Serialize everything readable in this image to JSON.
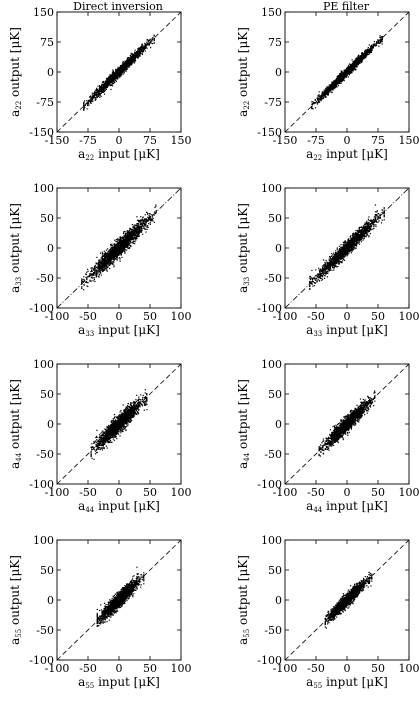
{
  "figure": {
    "columns": [
      "Direct inversion",
      "PE filter"
    ]
  },
  "chart_data": [
    {
      "type": "scatter",
      "column": "Direct inversion",
      "row": "a22",
      "xlabel": "a",
      "xlabel_sub": "22",
      "xlabel_unit": "input  [μK]",
      "ylabel": "a",
      "ylabel_sub": "22",
      "ylabel_unit": "output  [μK]",
      "xlim": [
        -150,
        150
      ],
      "ylim": [
        -150,
        150
      ],
      "xticks": [
        -150,
        -75,
        0,
        75,
        150
      ],
      "yticks": [
        -150,
        -75,
        0,
        75,
        150
      ],
      "diagonal": "y = x, dashed",
      "spread": 6,
      "cloud_extent": [
        -85,
        85
      ],
      "points_approx": 1800
    },
    {
      "type": "scatter",
      "column": "PE filter",
      "row": "a22",
      "xlabel": "a",
      "xlabel_sub": "22",
      "xlabel_unit": "input  [μK]",
      "ylabel": "a",
      "ylabel_sub": "22",
      "ylabel_unit": "output  [μK]",
      "xlim": [
        -150,
        150
      ],
      "ylim": [
        -150,
        150
      ],
      "xticks": [
        -150,
        -75,
        0,
        75,
        150
      ],
      "yticks": [
        -150,
        -75,
        0,
        75,
        150
      ],
      "diagonal": "y = x, dashed",
      "spread": 5,
      "cloud_extent": [
        -85,
        85
      ],
      "points_approx": 1800
    },
    {
      "type": "scatter",
      "column": "Direct inversion",
      "row": "a33",
      "xlabel": "a",
      "xlabel_sub": "33",
      "xlabel_unit": "input  [μK]",
      "ylabel": "a",
      "ylabel_sub": "33",
      "ylabel_unit": "output  [μK]",
      "xlim": [
        -100,
        100
      ],
      "ylim": [
        -100,
        100
      ],
      "xticks": [
        -100,
        -50,
        0,
        50,
        100
      ],
      "yticks": [
        -100,
        -50,
        0,
        50,
        100
      ],
      "diagonal": "y = x, dash-dot",
      "spread": 7,
      "cloud_extent": [
        -60,
        60
      ],
      "points_approx": 1800
    },
    {
      "type": "scatter",
      "column": "PE filter",
      "row": "a33",
      "xlabel": "a",
      "xlabel_sub": "33",
      "xlabel_unit": "input  [μK]",
      "ylabel": "a",
      "ylabel_sub": "33",
      "ylabel_unit": "output  [μK]",
      "xlim": [
        -100,
        100
      ],
      "ylim": [
        -100,
        100
      ],
      "xticks": [
        -100,
        -50,
        0,
        50,
        100
      ],
      "yticks": [
        -100,
        -50,
        0,
        50,
        100
      ],
      "diagonal": "y = x, dash-dot",
      "spread": 6,
      "cloud_extent": [
        -60,
        60
      ],
      "points_approx": 1800
    },
    {
      "type": "scatter",
      "column": "Direct inversion",
      "row": "a44",
      "xlabel": "a",
      "xlabel_sub": "44",
      "xlabel_unit": "input  [μK]",
      "ylabel": "a",
      "ylabel_sub": "44",
      "ylabel_unit": "output  [μK]",
      "xlim": [
        -100,
        100
      ],
      "ylim": [
        -100,
        100
      ],
      "xticks": [
        -100,
        -50,
        0,
        50,
        100
      ],
      "yticks": [
        -100,
        -50,
        0,
        50,
        100
      ],
      "diagonal": "y = x, dashed",
      "spread": 7,
      "cloud_extent": [
        -45,
        45
      ],
      "points_approx": 1800
    },
    {
      "type": "scatter",
      "column": "PE filter",
      "row": "a44",
      "xlabel": "a",
      "xlabel_sub": "44",
      "xlabel_unit": "input  [μK]",
      "ylabel": "a",
      "ylabel_sub": "44",
      "ylabel_unit": "output  [μK]",
      "xlim": [
        -100,
        100
      ],
      "ylim": [
        -100,
        100
      ],
      "xticks": [
        -100,
        -50,
        0,
        50,
        100
      ],
      "yticks": [
        -100,
        -50,
        0,
        50,
        100
      ],
      "diagonal": "y = x, dashed",
      "spread": 6,
      "cloud_extent": [
        -45,
        45
      ],
      "points_approx": 1800
    },
    {
      "type": "scatter",
      "column": "Direct inversion",
      "row": "a55",
      "xlabel": "a",
      "xlabel_sub": "55",
      "xlabel_unit": "input  [μK]",
      "ylabel": "a",
      "ylabel_sub": "55",
      "ylabel_unit": "output  [μK]",
      "xlim": [
        -100,
        100
      ],
      "ylim": [
        -100,
        100
      ],
      "xticks": [
        -100,
        -50,
        0,
        50,
        100
      ],
      "yticks": [
        -100,
        -50,
        0,
        50,
        100
      ],
      "diagonal": "y = x, dashed",
      "spread": 6,
      "cloud_extent": [
        -35,
        40
      ],
      "points_approx": 1800
    },
    {
      "type": "scatter",
      "column": "PE filter",
      "row": "a55",
      "xlabel": "a",
      "xlabel_sub": "55",
      "xlabel_unit": "input  [μK]",
      "ylabel": "a",
      "ylabel_sub": "55",
      "ylabel_unit": "output  [μK]",
      "xlim": [
        -100,
        100
      ],
      "ylim": [
        -100,
        100
      ],
      "xticks": [
        -100,
        -50,
        0,
        50,
        100
      ],
      "yticks": [
        -100,
        -50,
        0,
        50,
        100
      ],
      "diagonal": "y = x, dashed",
      "spread": 5,
      "cloud_extent": [
        -35,
        40
      ],
      "points_approx": 1800
    }
  ]
}
